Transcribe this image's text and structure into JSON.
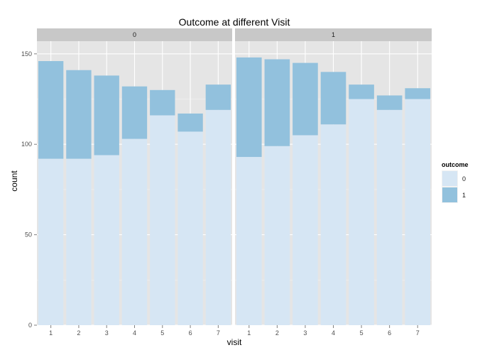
{
  "chart_data": {
    "type": "bar",
    "stacked": true,
    "faceted": true,
    "title": "Outcome at different Visit",
    "xlabel": "visit",
    "ylabel": "count",
    "categories": [
      "1",
      "2",
      "3",
      "4",
      "5",
      "6",
      "7"
    ],
    "ylim": [
      0,
      157
    ],
    "yticks": [
      0,
      50,
      100,
      150
    ],
    "grid": true,
    "legend_position": "right",
    "legend_title": "outcome",
    "colors": {
      "panel_bg": "#E5E5E5",
      "strip_bg": "#C8C8C8",
      "grid_major": "#FFFFFF",
      "grid_minor": "#F2F2F2",
      "outcome_0": "#D6E6F4",
      "outcome_1": "#92C1DD"
    },
    "facets": [
      {
        "label": "0",
        "series": [
          {
            "name": "0",
            "values": [
              92,
              92,
              94,
              103,
              116,
              107,
              119
            ]
          },
          {
            "name": "1",
            "values": [
              54,
              49,
              44,
              29,
              14,
              10,
              14
            ]
          }
        ]
      },
      {
        "label": "1",
        "series": [
          {
            "name": "0",
            "values": [
              93,
              99,
              105,
              111,
              125,
              119,
              125
            ]
          },
          {
            "name": "1",
            "values": [
              55,
              48,
              40,
              29,
              8,
              8,
              6
            ]
          }
        ]
      }
    ]
  }
}
